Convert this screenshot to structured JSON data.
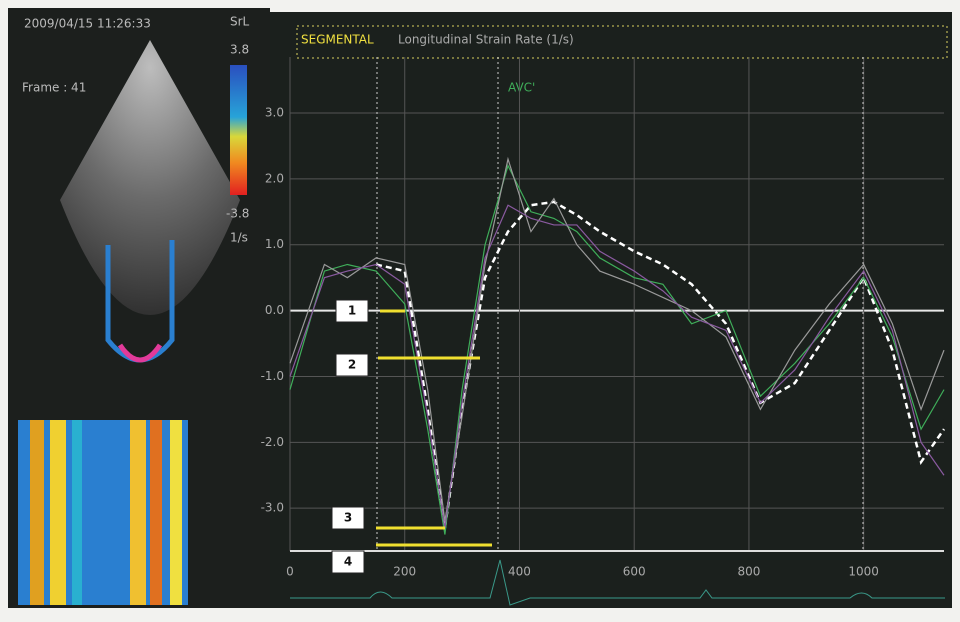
{
  "screen": {
    "timestamp": "2009/04/15 11:26:33",
    "scale_name": "SrL",
    "scale_max": "3.8",
    "frame": "Frame : 41",
    "scale_min": "-3.8",
    "scale_unit": "1/s"
  },
  "chart_data": {
    "type": "line",
    "title": "SEGMENTAL",
    "subtitle": "Longitudinal Strain Rate (1/s)",
    "event_label": "AVC'",
    "annotations": [
      "1",
      "2",
      "3",
      "4"
    ],
    "x": [
      0,
      60,
      100,
      150,
      200,
      240,
      270,
      300,
      340,
      380,
      420,
      460,
      500,
      540,
      600,
      650,
      700,
      760,
      820,
      880,
      940,
      1000,
      1050,
      1100,
      1140
    ],
    "series": [
      {
        "color": "#ffffff",
        "dashed": true,
        "values": [
          null,
          null,
          null,
          0.7,
          0.6,
          -1.5,
          -3.3,
          -1.5,
          0.5,
          1.2,
          1.6,
          1.65,
          1.45,
          1.2,
          0.9,
          0.7,
          0.4,
          -0.2,
          -1.4,
          -1.1,
          -0.3,
          0.5,
          -0.6,
          -2.3,
          -1.8
        ]
      },
      {
        "color": "#3fae5a",
        "dashed": false,
        "values": [
          -1.2,
          0.6,
          0.7,
          0.6,
          0.1,
          -1.8,
          -3.4,
          -1.2,
          1.0,
          2.2,
          1.5,
          1.4,
          1.2,
          0.8,
          0.5,
          0.4,
          -0.2,
          0.0,
          -1.3,
          -0.8,
          -0.2,
          0.5,
          -0.4,
          -1.8,
          -1.2
        ]
      },
      {
        "color": "#9a9a9a",
        "dashed": false,
        "values": [
          -0.8,
          0.7,
          0.5,
          0.8,
          0.7,
          -1.2,
          -3.2,
          -1.6,
          0.7,
          2.3,
          1.2,
          1.7,
          1.0,
          0.6,
          0.4,
          0.2,
          0.0,
          -0.4,
          -1.5,
          -0.6,
          0.1,
          0.7,
          -0.2,
          -1.5,
          -0.6
        ]
      },
      {
        "color": "#8a5aa0",
        "dashed": false,
        "values": [
          -1.0,
          0.5,
          0.6,
          0.7,
          0.4,
          -1.6,
          -3.3,
          -1.4,
          0.8,
          1.6,
          1.4,
          1.3,
          1.3,
          0.9,
          0.6,
          0.3,
          -0.1,
          -0.3,
          -1.4,
          -0.9,
          -0.1,
          0.6,
          -0.3,
          -2.0,
          -2.5
        ]
      }
    ],
    "xlim": [
      0,
      1140
    ],
    "ylim": [
      -3.65,
      3.85
    ],
    "xticks": [
      0,
      200,
      400,
      600,
      800,
      1000
    ],
    "yticks": [
      {
        "value": 3,
        "label": "3.0"
      },
      {
        "value": 2,
        "label": "2.0"
      },
      {
        "value": 1,
        "label": "1.0"
      },
      {
        "value": 0,
        "label": "0.0"
      },
      {
        "value": -1,
        "label": "-1.0"
      },
      {
        "value": -2,
        "label": "-2.0"
      },
      {
        "value": -3,
        "label": "-3.0"
      }
    ],
    "grid": true
  }
}
